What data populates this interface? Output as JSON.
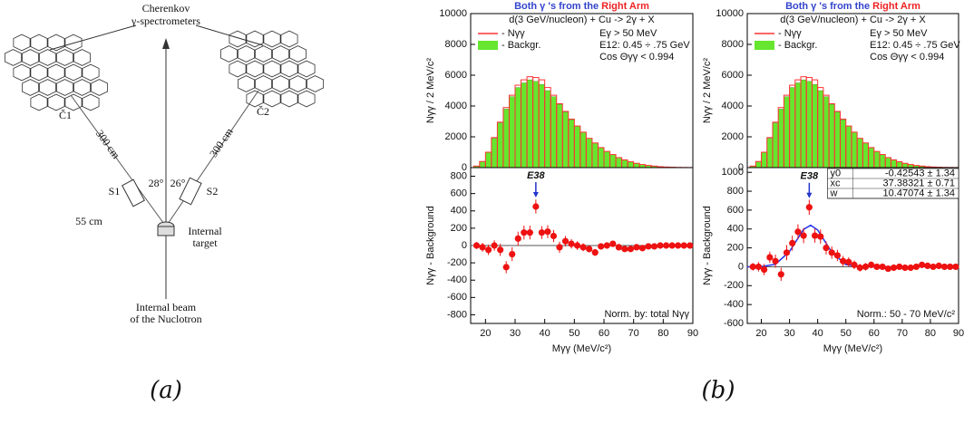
{
  "diagram": {
    "title_lines": [
      "Cherenkov",
      "γ-spectrometers"
    ],
    "detectors": [
      "Č1",
      "Č2"
    ],
    "distances": [
      "300 cm",
      "300 cm"
    ],
    "counters": [
      "S1",
      "S2"
    ],
    "angles": [
      "28°",
      "26°"
    ],
    "counter_distance": "55 cm",
    "target_lines": [
      "Internal",
      "target"
    ],
    "beam_lines": [
      "Internal beam",
      "of the Nuclotron"
    ]
  },
  "captions": [
    "(a)",
    "(b)"
  ],
  "chart_data": [
    {
      "type": "histogram",
      "title": [
        "Both γ 's from the",
        "Right Arm"
      ],
      "subtitle": "d(3 GeV/nucleon) + Cu -> 2γ + X",
      "annotations": [
        "Eγ > 50 MeV",
        "E12: 0.45 ÷ .75 GeV",
        "Cos Θγγ < 0.994"
      ],
      "ylabel": "Nγγ / 2 MeV/c²",
      "bins": [
        16,
        18,
        20,
        22,
        24,
        26,
        28,
        30,
        32,
        34,
        36,
        38,
        40,
        42,
        44,
        46,
        48,
        50,
        52,
        54,
        56,
        58,
        60,
        62,
        64,
        66,
        68,
        70,
        72,
        74,
        76,
        78,
        80,
        82,
        84,
        86,
        88,
        90
      ],
      "series": [
        {
          "name": "- Nγγ",
          "color": "#ff3333",
          "values": [
            100,
            400,
            1000,
            1950,
            2950,
            3900,
            4700,
            5350,
            5700,
            5900,
            5850,
            5700,
            5200,
            4700,
            4150,
            3650,
            3150,
            2700,
            2300,
            1900,
            1600,
            1300,
            1050,
            850,
            650,
            500,
            380,
            280,
            200,
            140,
            100,
            60,
            40,
            25,
            15,
            10,
            5
          ]
        },
        {
          "name": "- Backgr.",
          "color": "#66e62e",
          "values": [
            100,
            400,
            1000,
            1900,
            2900,
            3800,
            4600,
            5200,
            5500,
            5700,
            5600,
            5400,
            5000,
            4600,
            4100,
            3600,
            3100,
            2700,
            2300,
            1900,
            1600,
            1300,
            1050,
            850,
            650,
            500,
            380,
            280,
            200,
            140,
            100,
            60,
            40,
            25,
            15,
            10,
            5
          ]
        }
      ],
      "xlim": [
        15,
        90
      ],
      "ylim": [
        0,
        10000
      ],
      "yticks": [
        0,
        2000,
        4000,
        6000,
        8000,
        10000
      ]
    },
    {
      "type": "scatter",
      "ylabel": "Nγγ - Background",
      "xlabel": "Mγγ   (MeV/c²)",
      "annotation": "E38",
      "note": "Norm. by: total Nγγ",
      "color": "#ee1111",
      "x": [
        17,
        19,
        21,
        23,
        25,
        27,
        29,
        31,
        33,
        35,
        37,
        39,
        41,
        43,
        45,
        47,
        49,
        51,
        53,
        55,
        57,
        59,
        61,
        63,
        65,
        67,
        69,
        71,
        73,
        75,
        77,
        79,
        81,
        83,
        85,
        87,
        89
      ],
      "values": [
        0,
        -20,
        -50,
        0,
        -50,
        -250,
        -100,
        80,
        150,
        150,
        450,
        150,
        160,
        110,
        -20,
        50,
        20,
        0,
        -20,
        -40,
        -80,
        -10,
        0,
        20,
        -20,
        -40,
        -40,
        -20,
        -30,
        -10,
        -10,
        0,
        0,
        0,
        0,
        0,
        0
      ],
      "errors": [
        40,
        50,
        60,
        60,
        70,
        70,
        80,
        80,
        80,
        80,
        80,
        75,
        75,
        70,
        65,
        60,
        55,
        50,
        45,
        40,
        40,
        35,
        30,
        30,
        25,
        25,
        20,
        20,
        20,
        15,
        15,
        15,
        10,
        10,
        10,
        10,
        10
      ],
      "xlim": [
        15,
        90
      ],
      "xticks": [
        20,
        30,
        40,
        50,
        60,
        70,
        80,
        90
      ],
      "ylim": [
        -900,
        900
      ],
      "yticks": [
        -800,
        -600,
        -400,
        -200,
        0,
        200,
        400,
        600,
        800
      ]
    },
    {
      "type": "histogram",
      "title": [
        "Both γ 's from the",
        "Right Arm"
      ],
      "subtitle": "d(3 GeV/nucleon) + Cu -> 2γ + X",
      "annotations": [
        "Eγ > 50 MeV",
        "E12: 0.45 ÷ .75 GeV",
        "Cos Θγγ < 0.994"
      ],
      "ylabel": "Nγγ / 2 MeV/c²",
      "bins": [
        16,
        18,
        20,
        22,
        24,
        26,
        28,
        30,
        32,
        34,
        36,
        38,
        40,
        42,
        44,
        46,
        48,
        50,
        52,
        54,
        56,
        58,
        60,
        62,
        64,
        66,
        68,
        70,
        72,
        74,
        76,
        78,
        80,
        82,
        84,
        86,
        88,
        90
      ],
      "series": [
        {
          "name": "- Nγγ",
          "color": "#ff3333",
          "values": [
            100,
            400,
            1000,
            1950,
            2950,
            3900,
            4700,
            5350,
            5700,
            5900,
            5850,
            5700,
            5200,
            4700,
            4150,
            3650,
            3150,
            2700,
            2300,
            1900,
            1600,
            1300,
            1050,
            850,
            650,
            500,
            380,
            280,
            200,
            140,
            100,
            60,
            40,
            25,
            15,
            10,
            5
          ]
        },
        {
          "name": "- Backgr.",
          "color": "#66e62e",
          "values": [
            100,
            400,
            1000,
            1900,
            2900,
            3800,
            4600,
            5200,
            5500,
            5700,
            5600,
            5400,
            5000,
            4600,
            4100,
            3600,
            3100,
            2700,
            2300,
            1900,
            1600,
            1300,
            1050,
            850,
            650,
            500,
            380,
            280,
            200,
            140,
            100,
            60,
            40,
            25,
            15,
            10,
            5
          ]
        }
      ],
      "xlim": [
        15,
        90
      ],
      "ylim": [
        0,
        10000
      ],
      "yticks": [
        0,
        2000,
        4000,
        6000,
        8000,
        10000
      ]
    },
    {
      "type": "scatter",
      "ylabel": "Nγγ - Background",
      "xlabel": "Mγγ   (MeV/c²)",
      "annotation": "E38",
      "note": "Norm.: 50 - 70 MeV/c²",
      "color": "#ee1111",
      "x": [
        17,
        19,
        21,
        23,
        25,
        27,
        29,
        31,
        33,
        35,
        37,
        39,
        41,
        43,
        45,
        47,
        49,
        51,
        53,
        55,
        57,
        59,
        61,
        63,
        65,
        67,
        69,
        71,
        73,
        75,
        77,
        79,
        81,
        83,
        85,
        87,
        89
      ],
      "values": [
        0,
        0,
        -30,
        100,
        60,
        -80,
        150,
        250,
        370,
        330,
        630,
        330,
        320,
        200,
        150,
        120,
        60,
        50,
        20,
        -10,
        0,
        20,
        0,
        0,
        -20,
        -10,
        0,
        -10,
        -10,
        0,
        20,
        10,
        0,
        10,
        0,
        0,
        0
      ],
      "errors": [
        40,
        50,
        60,
        60,
        70,
        70,
        80,
        80,
        80,
        80,
        80,
        75,
        75,
        70,
        65,
        60,
        55,
        50,
        45,
        40,
        40,
        35,
        30,
        30,
        25,
        25,
        20,
        20,
        20,
        15,
        15,
        15,
        10,
        10,
        10,
        10,
        10
      ],
      "fit": {
        "color": "#2233ee",
        "x": [
          15,
          20,
          25,
          30,
          35,
          37.5,
          40,
          45,
          50,
          55,
          60,
          65,
          70
        ],
        "values": [
          0,
          2,
          26,
          162,
          396,
          440,
          389,
          154,
          24,
          2,
          0,
          0,
          0
        ]
      },
      "fit_table": {
        "rows": [
          [
            "y0",
            "-0.42543 ± 1.34"
          ],
          [
            "xc",
            "37.38321 ± 0.71"
          ],
          [
            "w",
            "10.47074 ± 1.34"
          ]
        ]
      },
      "xlim": [
        15,
        90
      ],
      "xticks": [
        20,
        30,
        40,
        50,
        60,
        70,
        80,
        90
      ],
      "ylim": [
        -600,
        1050
      ],
      "yticks": [
        -600,
        -400,
        -200,
        0,
        200,
        400,
        600,
        800,
        1000
      ]
    }
  ]
}
